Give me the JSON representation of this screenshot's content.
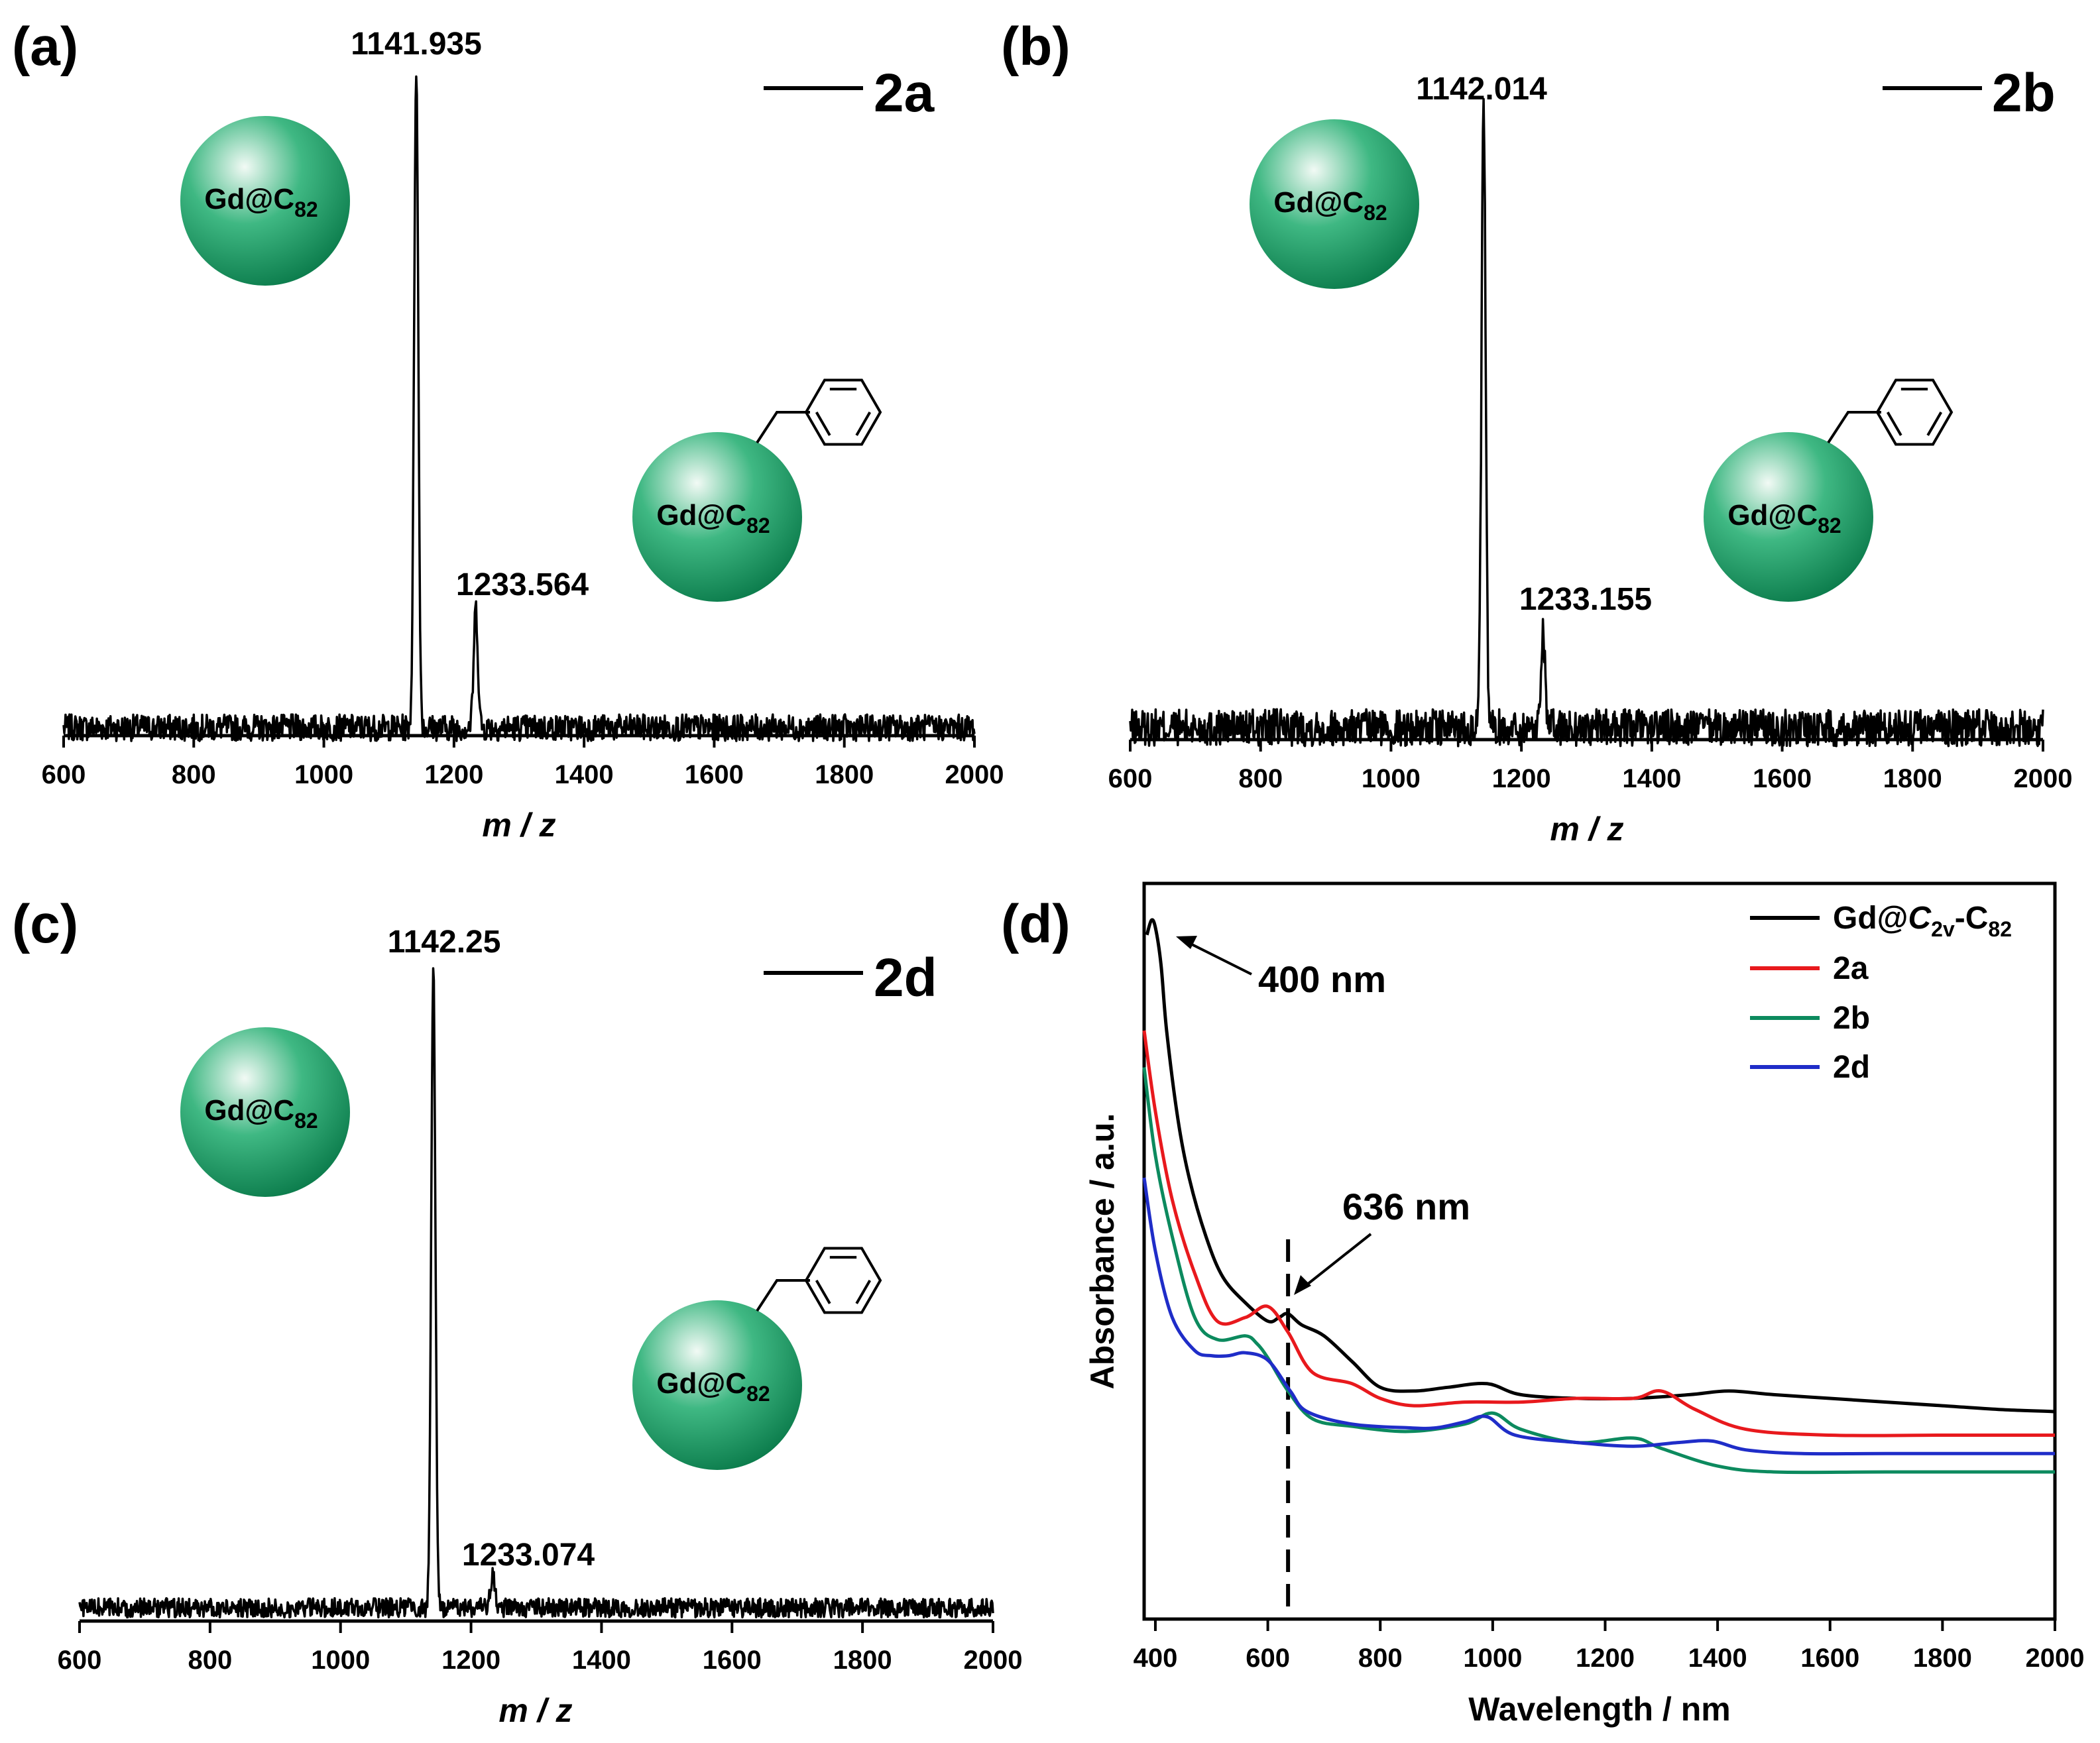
{
  "molecule": {
    "label_main": "Gd@C",
    "label_sub": "82",
    "sphere_color_light": "#f2faf5",
    "sphere_color_mid": "#3fb883",
    "sphere_color_dark": "#0a7a4a"
  },
  "chart_data": [
    {
      "type": "line",
      "panel": "(a)",
      "xlabel": "m / z",
      "ylabel": "",
      "xlim": [
        600,
        2000
      ],
      "x_ticks": [
        600,
        800,
        1000,
        1200,
        1400,
        1600,
        1800,
        2000
      ],
      "legend": [
        {
          "name": "2a",
          "color": "#000000"
        }
      ],
      "peaks": [
        {
          "x": 1141.935,
          "rel_intensity": 1.0,
          "label": "1141.935"
        },
        {
          "x": 1233.564,
          "rel_intensity": 0.18,
          "label": "1233.564"
        }
      ],
      "noise_level": 0.02
    },
    {
      "type": "line",
      "panel": "(b)",
      "xlabel": "m / z",
      "ylabel": "",
      "xlim": [
        600,
        2000
      ],
      "x_ticks": [
        600,
        800,
        1000,
        1200,
        1400,
        1600,
        1800,
        2000
      ],
      "legend": [
        {
          "name": "2b",
          "color": "#000000"
        }
      ],
      "peaks": [
        {
          "x": 1142.014,
          "rel_intensity": 1.0,
          "label": "1142.014"
        },
        {
          "x": 1233.155,
          "rel_intensity": 0.16,
          "label": "1233.155"
        }
      ],
      "noise_level": 0.03
    },
    {
      "type": "line",
      "panel": "(c)",
      "xlabel": "m / z",
      "ylabel": "",
      "xlim": [
        600,
        2000
      ],
      "x_ticks": [
        600,
        800,
        1000,
        1200,
        1400,
        1600,
        1800,
        2000
      ],
      "legend": [
        {
          "name": "2d",
          "color": "#000000"
        }
      ],
      "peaks": [
        {
          "x": 1142.25,
          "rel_intensity": 1.0,
          "label": "1142.25"
        },
        {
          "x": 1233.074,
          "rel_intensity": 0.05,
          "label": "1233.074"
        }
      ],
      "noise_level": 0.015
    },
    {
      "type": "line",
      "panel": "(d)",
      "xlabel": "Wavelength / nm",
      "ylabel": "Absorbance / a.u.",
      "xlim": [
        380,
        2000
      ],
      "ylim": [
        0,
        1
      ],
      "x_ticks": [
        400,
        600,
        800,
        1000,
        1200,
        1400,
        1600,
        1800,
        2000
      ],
      "y_ticks": [],
      "annotations": [
        {
          "text": "400 nm",
          "x": 400
        },
        {
          "text": "636 nm",
          "x": 636
        }
      ],
      "vline": 636,
      "legend_pos": "top-right",
      "series": [
        {
          "name": "Gd@C2v-C82",
          "legend_main": "Gd@",
          "legend_italic": "C",
          "legend_sub": "2v",
          "legend_tail": "-C",
          "legend_sub2": "82",
          "color": "#000000",
          "x": [
            385,
            393,
            400,
            410,
            420,
            440,
            460,
            490,
            520,
            560,
            600,
            620,
            636,
            660,
            700,
            750,
            800,
            860,
            920,
            990,
            1050,
            1150,
            1250,
            1350,
            1420,
            1500,
            1600,
            1700,
            1800,
            1900,
            2000
          ],
          "y": [
            0.93,
            0.95,
            0.94,
            0.89,
            0.8,
            0.68,
            0.6,
            0.52,
            0.465,
            0.43,
            0.405,
            0.41,
            0.415,
            0.4,
            0.385,
            0.35,
            0.315,
            0.31,
            0.315,
            0.32,
            0.305,
            0.3,
            0.3,
            0.305,
            0.31,
            0.305,
            0.3,
            0.295,
            0.29,
            0.285,
            0.282
          ]
        },
        {
          "name": "2a",
          "color": "#e8191d",
          "x": [
            380,
            400,
            430,
            470,
            510,
            560,
            600,
            636,
            680,
            750,
            800,
            860,
            950,
            1050,
            1150,
            1250,
            1300,
            1360,
            1450,
            1600,
            1800,
            2000
          ],
          "y": [
            0.8,
            0.69,
            0.57,
            0.47,
            0.405,
            0.41,
            0.425,
            0.39,
            0.335,
            0.32,
            0.3,
            0.29,
            0.295,
            0.295,
            0.3,
            0.3,
            0.31,
            0.285,
            0.258,
            0.25,
            0.25,
            0.25
          ]
        },
        {
          "name": "2b",
          "color": "#0c8a5e",
          "x": [
            380,
            400,
            430,
            470,
            510,
            560,
            580,
            600,
            636,
            680,
            750,
            850,
            950,
            1000,
            1050,
            1150,
            1250,
            1300,
            1400,
            1500,
            1700,
            2000
          ],
          "y": [
            0.75,
            0.63,
            0.52,
            0.41,
            0.38,
            0.385,
            0.375,
            0.355,
            0.31,
            0.272,
            0.262,
            0.255,
            0.265,
            0.28,
            0.258,
            0.24,
            0.246,
            0.232,
            0.208,
            0.2,
            0.2,
            0.2
          ]
        },
        {
          "name": "2d",
          "color": "#1f2dc8",
          "x": [
            380,
            400,
            430,
            470,
            500,
            530,
            560,
            600,
            640,
            670,
            750,
            850,
            900,
            950,
            990,
            1040,
            1150,
            1250,
            1330,
            1390,
            1450,
            1550,
            1700,
            2000
          ],
          "y": [
            0.6,
            0.5,
            0.41,
            0.365,
            0.358,
            0.358,
            0.362,
            0.352,
            0.31,
            0.282,
            0.265,
            0.26,
            0.26,
            0.268,
            0.275,
            0.25,
            0.24,
            0.235,
            0.24,
            0.242,
            0.23,
            0.225,
            0.225,
            0.225
          ]
        }
      ]
    }
  ]
}
